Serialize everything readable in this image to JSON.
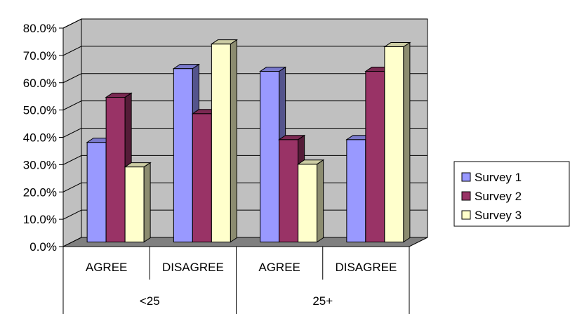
{
  "chart_data": {
    "type": "bar",
    "style": "3d-clustered-column",
    "groups": [
      {
        "label": "<25",
        "categories": [
          "AGREE",
          "DISAGREE"
        ]
      },
      {
        "label": "25+",
        "categories": [
          "AGREE",
          "DISAGREE"
        ]
      }
    ],
    "categories": [
      "AGREE",
      "DISAGREE",
      "AGREE",
      "DISAGREE"
    ],
    "series": [
      {
        "name": "Survey 1",
        "color": "#9999ff",
        "values": [
          36.5,
          63.5,
          62.5,
          37.5
        ]
      },
      {
        "name": "Survey 2",
        "color": "#993366",
        "values": [
          53.0,
          47.0,
          37.5,
          62.5
        ]
      },
      {
        "name": "Survey 3",
        "color": "#ffffcc",
        "values": [
          27.5,
          72.5,
          28.5,
          71.5
        ]
      }
    ],
    "ylim": [
      0,
      80
    ],
    "yticks": [
      "0.0%",
      "10.0%",
      "20.0%",
      "30.0%",
      "40.0%",
      "50.0%",
      "60.0%",
      "70.0%",
      "80.0%"
    ],
    "grid": true,
    "legend": "right",
    "wall_color": "#c0c0c0",
    "floor_color": "#808080"
  }
}
